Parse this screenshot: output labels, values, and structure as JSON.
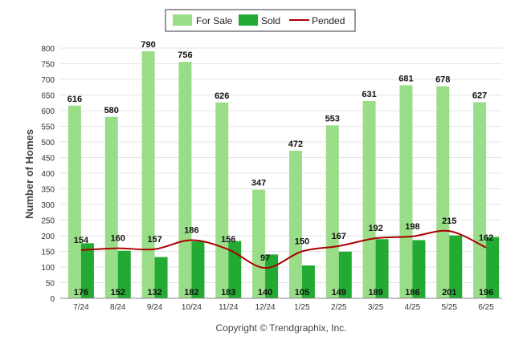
{
  "chart_data": {
    "type": "bar",
    "ylabel": "Number of Homes",
    "ylim": [
      0,
      800
    ],
    "yticks": [
      0,
      50,
      100,
      150,
      200,
      250,
      300,
      350,
      400,
      450,
      500,
      550,
      600,
      650,
      700,
      750,
      800
    ],
    "grid": true,
    "legend_position": "top-center",
    "categories": [
      "7/24",
      "8/24",
      "9/24",
      "10/24",
      "11/24",
      "12/24",
      "1/25",
      "2/25",
      "3/25",
      "4/25",
      "5/25",
      "6/25"
    ],
    "series": [
      {
        "name": "For Sale",
        "type": "bar",
        "color": "#99dd88",
        "values": [
          616,
          580,
          790,
          756,
          626,
          347,
          472,
          553,
          631,
          681,
          678,
          627
        ]
      },
      {
        "name": "Sold",
        "type": "bar",
        "color": "#22aa33",
        "values": [
          176,
          152,
          132,
          182,
          183,
          140,
          105,
          149,
          189,
          186,
          201,
          196
        ]
      },
      {
        "name": "Pended",
        "type": "line",
        "color": "#aa0000",
        "values": [
          154,
          160,
          157,
          186,
          156,
          97,
          150,
          167,
          192,
          198,
          215,
          162
        ]
      }
    ]
  },
  "footer": {
    "copyright": "Copyright © Trendgraphix, Inc."
  }
}
